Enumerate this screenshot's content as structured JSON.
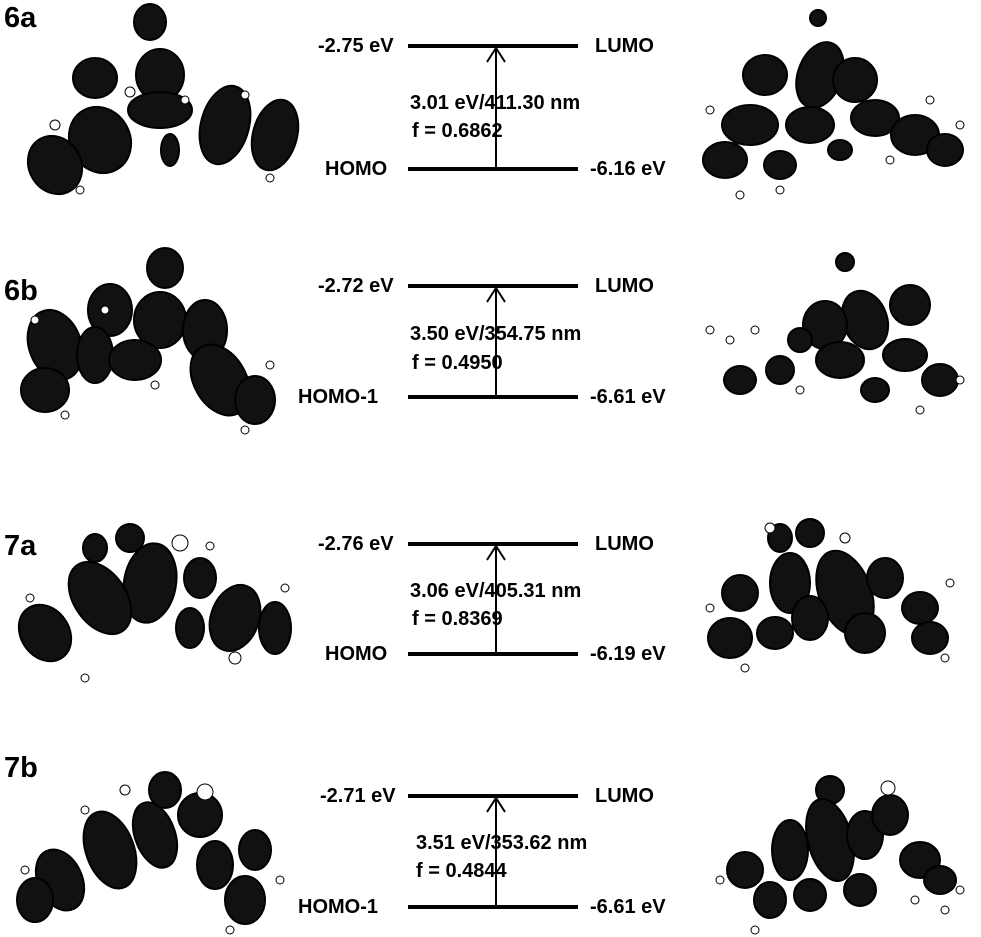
{
  "panels": [
    {
      "id": "6a",
      "lumo_energy": "-2.75 eV",
      "lumo_label": "LUMO",
      "homo_label": "HOMO",
      "homo_energy": "-6.16 eV",
      "transition": "3.01 eV/411.30 nm",
      "osc": "f = 0.6862"
    },
    {
      "id": "6b",
      "lumo_energy": "-2.72 eV",
      "lumo_label": "LUMO",
      "homo_label": "HOMO-1",
      "homo_energy": "-6.61 eV",
      "transition": "3.50 eV/354.75 nm",
      "osc": "f = 0.4950"
    },
    {
      "id": "7a",
      "lumo_energy": "-2.76 eV",
      "lumo_label": "LUMO",
      "homo_label": "HOMO",
      "homo_energy": "-6.19 eV",
      "transition": "3.06 eV/405.31 nm",
      "osc": "f = 0.8369"
    },
    {
      "id": "7b",
      "lumo_energy": "-2.71 eV",
      "lumo_label": "LUMO",
      "homo_label": "HOMO-1",
      "homo_energy": "-6.61 eV",
      "transition": "3.51 eV/353.62 nm",
      "osc": "f = 0.4844"
    }
  ]
}
